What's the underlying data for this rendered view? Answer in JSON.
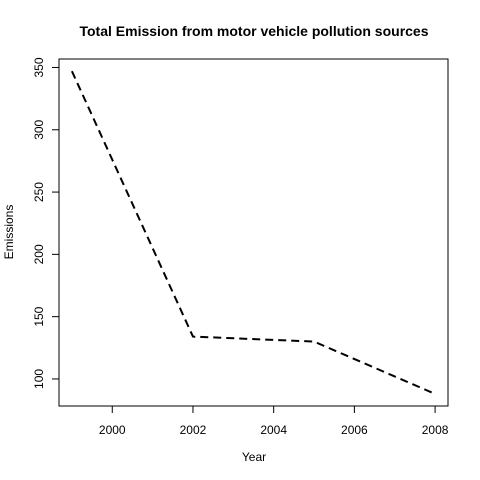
{
  "chart_data": {
    "type": "line",
    "title": "Total Emission from motor vehicle pollution sources",
    "xlabel": "Year",
    "ylabel": "Emissions",
    "x": [
      1999,
      2002,
      2005,
      2008
    ],
    "series": [
      {
        "values": [
          347,
          134,
          130,
          88
        ]
      }
    ],
    "xlim": [
      1998.68,
      2008.32
    ],
    "ylim": [
      78.3,
      356.8
    ],
    "xticks": [
      2000,
      2002,
      2004,
      2006,
      2008
    ],
    "yticks": [
      100,
      150,
      200,
      250,
      300,
      350
    ],
    "line_style": "dashed",
    "line_color": "#000000",
    "grid": false,
    "legend": "none"
  }
}
